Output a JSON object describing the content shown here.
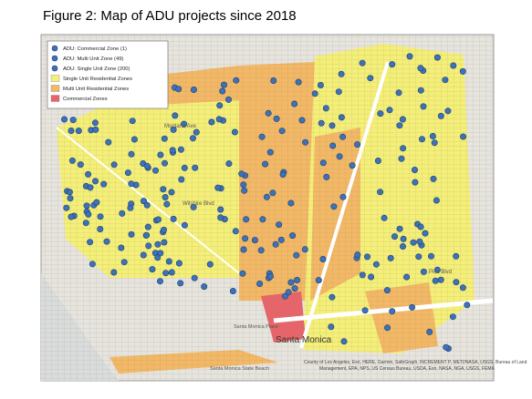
{
  "title": "Figure 2: Map of ADU projects since 2018",
  "legend": {
    "items": [
      {
        "label": "ADU: Commercial Zone (1)",
        "color": "#3d72b8",
        "kind": "point"
      },
      {
        "label": "ADU: Multi Unit Zone (49)",
        "color": "#3d72b8",
        "kind": "point"
      },
      {
        "label": "ADU: Single Unit Zone (200)",
        "color": "#3d72b8",
        "kind": "point"
      },
      {
        "label": "Single Unit Residential Zones",
        "color": "#f4ef78",
        "kind": "area"
      },
      {
        "label": "Multi Unit Residential Zones",
        "color": "#f2b866",
        "kind": "area"
      },
      {
        "label": "Commercial Zones",
        "color": "#e8646a",
        "kind": "area"
      }
    ]
  },
  "labels": [
    "Montana Ave",
    "Wilshire Blvd",
    "Santa Monica",
    "Santa Monica Place",
    "Santa Monica State Beach",
    "Pico Blvd"
  ],
  "attribution": [
    "County of Los Angeles, Esri, HERE, Garmin, SafeGraph, INCREMENT P, METI/NASA, USGS, Bureau of Land",
    "Management, EPA, NPS, US Census Bureau, USDA, Esri, NASA, NGA, USGS, FEMA"
  ]
}
